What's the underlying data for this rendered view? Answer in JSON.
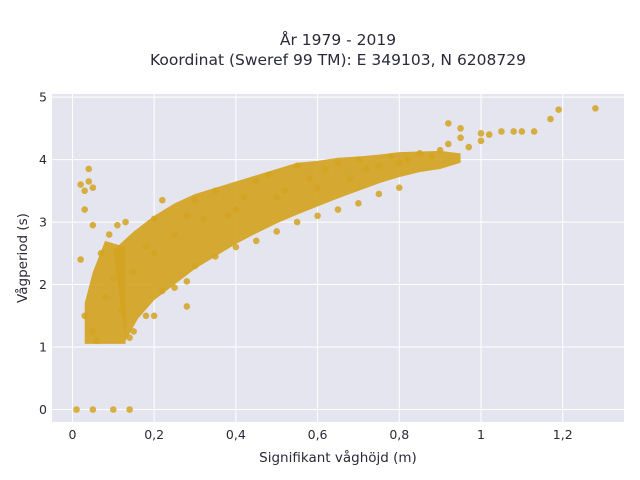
{
  "chart_data": {
    "type": "scatter",
    "title": "År 1979 - 2019",
    "subtitle": "Koordinat (Sweref 99 TM): E 349103, N 6208729",
    "xlabel": "Signifikant våghöjd (m)",
    "ylabel": "Vågperiod (s)",
    "xlim": [
      -0.05,
      1.35
    ],
    "ylim": [
      -0.2,
      5.05
    ],
    "x_ticks": [
      0,
      0.2,
      0.4,
      0.6,
      0.8,
      1,
      1.2
    ],
    "x_tick_labels": [
      "0",
      "0,2",
      "0,4",
      "0,6",
      "0,8",
      "1",
      "1,2"
    ],
    "y_ticks": [
      0,
      1,
      2,
      3,
      4,
      5
    ],
    "y_tick_labels": [
      "0",
      "1",
      "2",
      "3",
      "4",
      "5"
    ],
    "grid": true,
    "marker_color": "#d4a321",
    "background_color": "#e5e5f0",
    "series": [
      {
        "points": [
          [
            0.01,
            0.0
          ],
          [
            0.05,
            0.0
          ],
          [
            0.1,
            0.0
          ],
          [
            0.14,
            0.0
          ],
          [
            0.03,
            1.5
          ],
          [
            0.05,
            1.25
          ],
          [
            0.06,
            1.1
          ],
          [
            0.08,
            1.8
          ],
          [
            0.1,
            2.1
          ],
          [
            0.12,
            1.6
          ],
          [
            0.14,
            1.15
          ],
          [
            0.02,
            3.6
          ],
          [
            0.03,
            3.5
          ],
          [
            0.04,
            3.65
          ],
          [
            0.05,
            3.55
          ],
          [
            0.04,
            3.85
          ],
          [
            0.03,
            3.2
          ],
          [
            0.02,
            2.4
          ],
          [
            0.05,
            2.95
          ],
          [
            0.07,
            2.5
          ],
          [
            0.09,
            2.8
          ],
          [
            0.11,
            2.95
          ],
          [
            0.13,
            3.0
          ],
          [
            0.15,
            2.2
          ],
          [
            0.18,
            2.6
          ],
          [
            0.2,
            2.5
          ],
          [
            0.2,
            3.05
          ],
          [
            0.22,
            3.35
          ],
          [
            0.25,
            2.8
          ],
          [
            0.28,
            3.1
          ],
          [
            0.3,
            3.35
          ],
          [
            0.32,
            3.05
          ],
          [
            0.35,
            3.5
          ],
          [
            0.38,
            3.1
          ],
          [
            0.4,
            3.2
          ],
          [
            0.42,
            3.4
          ],
          [
            0.45,
            3.65
          ],
          [
            0.48,
            3.75
          ],
          [
            0.5,
            3.4
          ],
          [
            0.52,
            3.5
          ],
          [
            0.55,
            3.9
          ],
          [
            0.58,
            3.7
          ],
          [
            0.6,
            3.55
          ],
          [
            0.62,
            3.85
          ],
          [
            0.65,
            3.95
          ],
          [
            0.68,
            3.7
          ],
          [
            0.7,
            4.0
          ],
          [
            0.72,
            3.85
          ],
          [
            0.75,
            3.9
          ],
          [
            0.78,
            4.05
          ],
          [
            0.8,
            3.95
          ],
          [
            0.82,
            4.0
          ],
          [
            0.85,
            4.1
          ],
          [
            0.88,
            4.05
          ],
          [
            0.9,
            4.15
          ],
          [
            0.92,
            4.25
          ],
          [
            0.95,
            4.35
          ],
          [
            0.97,
            4.2
          ],
          [
            1.0,
            4.3
          ],
          [
            1.02,
            4.4
          ],
          [
            1.05,
            4.45
          ],
          [
            1.08,
            4.45
          ],
          [
            1.1,
            4.45
          ],
          [
            1.13,
            4.45
          ],
          [
            1.17,
            4.65
          ],
          [
            1.19,
            4.8
          ],
          [
            1.28,
            4.82
          ],
          [
            0.92,
            4.58
          ],
          [
            0.95,
            4.5
          ],
          [
            1.0,
            4.42
          ],
          [
            0.2,
            1.5
          ],
          [
            0.25,
            1.95
          ],
          [
            0.28,
            2.05
          ],
          [
            0.3,
            2.3
          ],
          [
            0.35,
            2.45
          ],
          [
            0.4,
            2.6
          ],
          [
            0.45,
            2.7
          ],
          [
            0.5,
            2.85
          ],
          [
            0.55,
            3.0
          ],
          [
            0.6,
            3.1
          ],
          [
            0.65,
            3.2
          ],
          [
            0.7,
            3.3
          ],
          [
            0.75,
            3.45
          ],
          [
            0.8,
            3.55
          ],
          [
            0.28,
            1.65
          ],
          [
            0.18,
            1.5
          ],
          [
            0.15,
            1.25
          ],
          [
            0.22,
            1.9
          ]
        ]
      }
    ]
  }
}
